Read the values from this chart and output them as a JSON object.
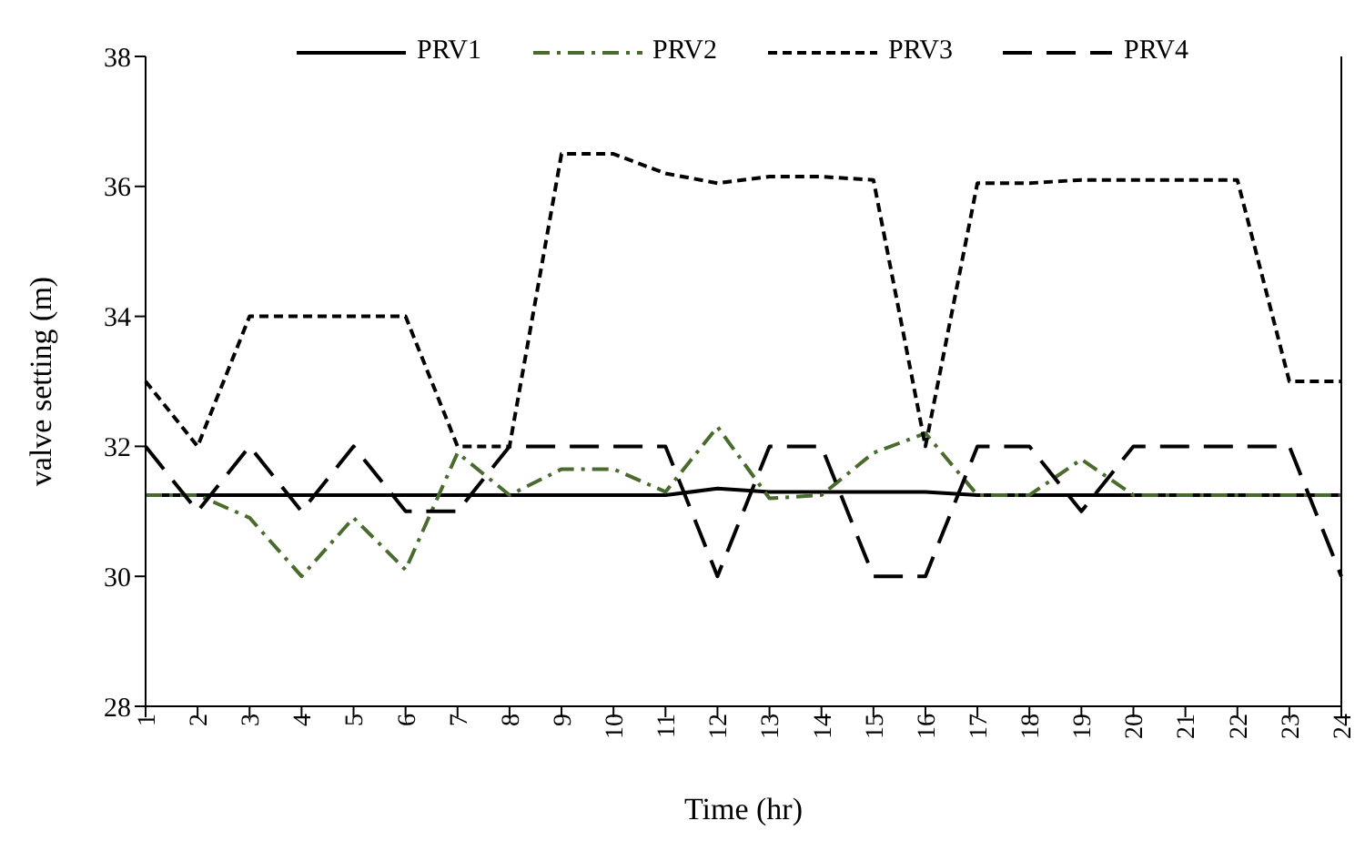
{
  "chart_data": {
    "type": "line",
    "xlabel": "Time (hr)",
    "ylabel": "valve setting (m)",
    "categories": [
      "1",
      "2",
      "3",
      "4",
      "5",
      "6",
      "7",
      "8",
      "9",
      "10",
      "11",
      "12",
      "13",
      "14",
      "15",
      "16",
      "17",
      "18",
      "19",
      "20",
      "21",
      "22",
      "23",
      "24"
    ],
    "ylim": [
      28,
      38
    ],
    "yticks": [
      28,
      30,
      32,
      34,
      36,
      38
    ],
    "legend": "top",
    "marker": "none",
    "series": [
      {
        "name": "PRV1",
        "color": "#000000",
        "line_style": "solid",
        "values": [
          31.25,
          31.25,
          31.25,
          31.25,
          31.25,
          31.25,
          31.25,
          31.25,
          31.25,
          31.25,
          31.25,
          31.35,
          31.3,
          31.3,
          31.3,
          31.3,
          31.25,
          31.25,
          31.25,
          31.25,
          31.25,
          31.25,
          31.25,
          31.25
        ]
      },
      {
        "name": "PRV2",
        "color": "#4a6b2e",
        "line_style": "dashdot",
        "values": [
          31.25,
          31.25,
          30.9,
          30.0,
          30.9,
          30.1,
          31.9,
          31.25,
          31.65,
          31.65,
          31.3,
          32.3,
          31.2,
          31.25,
          31.9,
          32.2,
          31.25,
          31.25,
          31.8,
          31.25,
          31.25,
          31.25,
          31.25,
          31.25
        ]
      },
      {
        "name": "PRV3",
        "color": "#000000",
        "line_style": "dashed",
        "values": [
          33,
          32,
          34,
          34,
          34,
          34,
          32,
          32,
          36.5,
          36.5,
          36.2,
          36.05,
          36.15,
          36.15,
          36.1,
          32,
          36.05,
          36.05,
          36.1,
          36.1,
          36.1,
          36.1,
          33,
          33
        ]
      },
      {
        "name": "PRV4",
        "color": "#000000",
        "line_style": "longdash",
        "values": [
          32,
          31,
          32,
          31,
          32,
          31,
          31,
          32,
          32,
          32,
          32,
          30,
          32,
          32,
          30,
          30,
          32,
          32,
          31,
          32,
          32,
          32,
          32,
          30
        ]
      }
    ]
  }
}
